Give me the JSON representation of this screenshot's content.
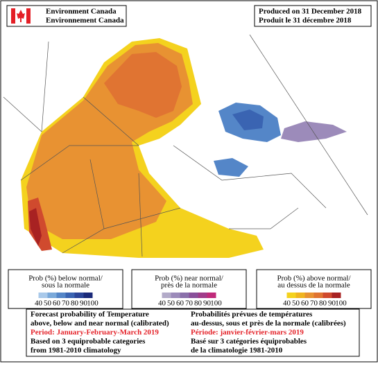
{
  "header": {
    "agency_en": "Environment Canada",
    "agency_fr": "Environnement Canada",
    "produced_en": "Produced on 31 December 2018",
    "produced_fr": "Produit le 31 décembre 2018"
  },
  "legends": [
    {
      "title": [
        "Prob (%) below normal/",
        "sous la normale"
      ],
      "labels": [
        40,
        50,
        60,
        70,
        80,
        90,
        100
      ],
      "colors": [
        "#a9c9ea",
        "#7aa9da",
        "#5486c8",
        "#3a64b2",
        "#2b4598",
        "#1b2a7a"
      ]
    },
    {
      "title": [
        "Prob (%) near normal/",
        "près de la normale"
      ],
      "labels": [
        40,
        50,
        60,
        70,
        80,
        90,
        100
      ],
      "colors": [
        "#b3abc9",
        "#9c8bba",
        "#8a70aa",
        "#89509a",
        "#a03c8a",
        "#c02a7a"
      ]
    },
    {
      "title": [
        "Prob (%) above normal/",
        "au dessus de la normale"
      ],
      "labels": [
        40,
        50,
        60,
        70,
        80,
        90,
        100
      ],
      "colors": [
        "#f4d21e",
        "#f0b420",
        "#e89232",
        "#e07432",
        "#d04a2e",
        "#a82222"
      ]
    }
  ],
  "footer": {
    "en": [
      "Forecast probability of Temperature",
      "above, below and near normal (calibrated)",
      "Period: January-February-March 2019",
      "Based on 3 equiprobable categories",
      "from 1981-2010 climatology"
    ],
    "fr": [
      "Probabilités prévues de températures",
      "au-dessus, sous et près de la normale (calibrées)",
      "Période: janvier-février-mars 2019",
      "Basé sur 3 catégories équiprobables",
      "de la climatologie 1981-2010"
    ]
  }
}
